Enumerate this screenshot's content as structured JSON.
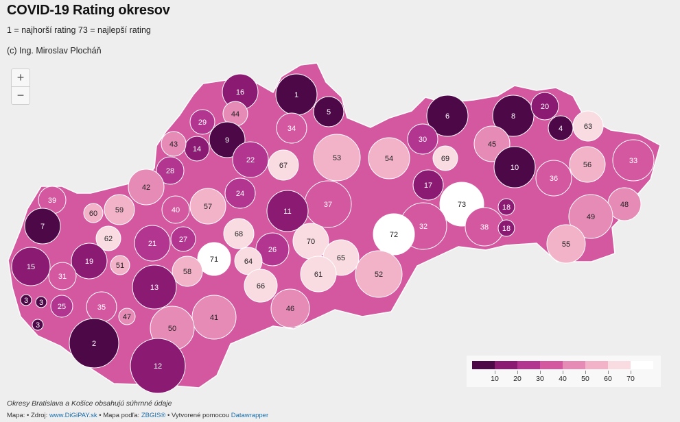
{
  "title": "COVID-19 Rating okresov",
  "subtitle": "1 = najhorší rating 73 = najlepší rating",
  "credit": "(c) Ing. Miroslav Plocháň",
  "zoom": {
    "in_label": "+",
    "out_label": "−"
  },
  "map": {
    "colors": [
      "#4d0848",
      "#8a1a72",
      "#b23590",
      "#d4589f",
      "#e58bb6",
      "#f2b3c8",
      "#f9dbe2",
      "#ffffff"
    ],
    "districts": [
      {
        "rating": 16
      },
      {
        "rating": 1
      },
      {
        "rating": 5
      },
      {
        "rating": 44
      },
      {
        "rating": 29
      },
      {
        "rating": 9
      },
      {
        "rating": 14
      },
      {
        "rating": 43
      },
      {
        "rating": 34
      },
      {
        "rating": 22
      },
      {
        "rating": 6
      },
      {
        "rating": 8
      },
      {
        "rating": 20
      },
      {
        "rating": 4
      },
      {
        "rating": 63
      },
      {
        "rating": 30
      },
      {
        "rating": 45
      },
      {
        "rating": 69
      },
      {
        "rating": 54
      },
      {
        "rating": 53
      },
      {
        "rating": 67
      },
      {
        "rating": 28
      },
      {
        "rating": 10
      },
      {
        "rating": 56
      },
      {
        "rating": 33
      },
      {
        "rating": 36
      },
      {
        "rating": 42
      },
      {
        "rating": 17
      },
      {
        "rating": 24
      },
      {
        "rating": 39
      },
      {
        "rating": 59
      },
      {
        "rating": 40
      },
      {
        "rating": 57
      },
      {
        "rating": 37
      },
      {
        "rating": 11
      },
      {
        "rating": 73
      },
      {
        "rating": 18
      },
      {
        "rating": 48
      },
      {
        "rating": 60
      },
      {
        "rating": 7
      },
      {
        "rating": 62
      },
      {
        "rating": 21
      },
      {
        "rating": 27
      },
      {
        "rating": 68
      },
      {
        "rating": 49
      },
      {
        "rating": 32
      },
      {
        "rating": 38
      },
      {
        "rating": 18
      },
      {
        "rating": 72
      },
      {
        "rating": 70
      },
      {
        "rating": 26
      },
      {
        "rating": 71
      },
      {
        "rating": 64
      },
      {
        "rating": 55
      },
      {
        "rating": 15
      },
      {
        "rating": 19
      },
      {
        "rating": 51
      },
      {
        "rating": 58
      },
      {
        "rating": 65
      },
      {
        "rating": 31
      },
      {
        "rating": 13
      },
      {
        "rating": 66
      },
      {
        "rating": 61
      },
      {
        "rating": 52
      },
      {
        "rating": 3
      },
      {
        "rating": 3
      },
      {
        "rating": 25
      },
      {
        "rating": 35
      },
      {
        "rating": 47
      },
      {
        "rating": 46
      },
      {
        "rating": 41
      },
      {
        "rating": 3
      },
      {
        "rating": 50
      },
      {
        "rating": 2
      },
      {
        "rating": 12
      }
    ]
  },
  "legend": {
    "colors": [
      "#4d0848",
      "#8a1a72",
      "#b23590",
      "#d4589f",
      "#e58bb6",
      "#f2b3c8",
      "#f9dbe2",
      "#ffffff"
    ],
    "ticks": [
      "10",
      "20",
      "30",
      "40",
      "50",
      "60",
      "70"
    ]
  },
  "footer": {
    "note": "Okresy Bratislava a Košice obsahujú súhrnné údaje",
    "prefix": "Mapa: • Zdroj: ",
    "source_link": "www.DiGiPAY.sk",
    "map_by": " • Mapa podľa: ",
    "map_link": "ZBGIS®",
    "created": " • Vytvorené pomocou ",
    "tool_link": "Datawrapper"
  }
}
